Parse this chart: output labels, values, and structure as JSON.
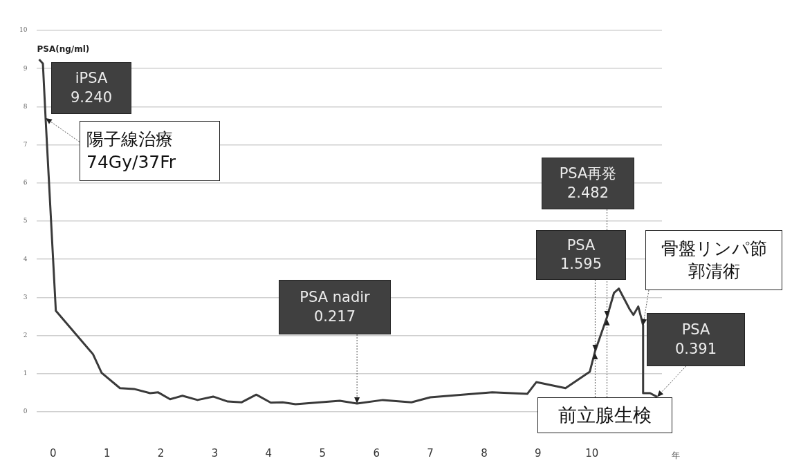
{
  "chart_data": {
    "type": "line",
    "ylabel": "PSA(ng/ml)",
    "xlabel": "年",
    "x": [
      -0.26,
      -0.19,
      -0.14,
      0.05,
      0.74,
      0.9,
      1.24,
      1.5,
      1.8,
      1.95,
      2.17,
      2.4,
      2.68,
      2.97,
      3.24,
      3.5,
      3.77,
      4.04,
      4.26,
      4.5,
      5.32,
      5.64,
      6.12,
      6.65,
      7.0,
      8.15,
      8.8,
      8.97,
      9.51,
      9.96,
      10.06,
      10.28,
      10.41,
      10.5,
      10.7,
      10.77,
      10.86,
      10.95,
      10.95,
      11.08,
      11.21
    ],
    "series": [
      {
        "color": "#3a3a3a",
        "values": [
          9.24,
          9.13,
          7.7,
          2.65,
          1.51,
          1.02,
          0.62,
          0.6,
          0.49,
          0.51,
          0.33,
          0.42,
          0.31,
          0.4,
          0.27,
          0.25,
          0.45,
          0.24,
          0.25,
          0.2,
          0.29,
          0.217,
          0.31,
          0.25,
          0.38,
          0.51,
          0.47,
          0.78,
          0.62,
          1.05,
          1.595,
          2.482,
          3.12,
          3.23,
          2.69,
          2.54,
          2.76,
          2.27,
          0.49,
          0.49,
          0.391
        ]
      }
    ],
    "xlim": [
      -0.3,
      11.3
    ],
    "ylim": [
      0,
      10
    ],
    "xticks": [
      0,
      1,
      2,
      3,
      4,
      5,
      6,
      7,
      8,
      9,
      10
    ],
    "yticks": [
      0,
      1,
      2,
      3,
      4,
      5,
      6,
      7,
      8,
      9,
      10
    ],
    "grid": "y",
    "legend": false,
    "marker": "none",
    "line_style": "solid",
    "annotations": [
      {
        "text": "iPSA\n9.240",
        "x": -0.26,
        "y": 9.24
      },
      {
        "text": "陽子線治療\n74Gy/37Fr",
        "x": -0.14,
        "y": 7.7
      },
      {
        "text": "PSA nadir\n0.217",
        "x": 5.64,
        "y": 0.217
      },
      {
        "text": "PSA再発\n2.482",
        "x": 10.28,
        "y": 2.482
      },
      {
        "text": "PSA\n1.595",
        "x": 10.06,
        "y": 1.595
      },
      {
        "text": "骨盤リンパ節郭清術",
        "x": 10.95,
        "y": 2.27
      },
      {
        "text": "PSA\n0.391",
        "x": 11.21,
        "y": 0.391
      },
      {
        "text": "前立腺生検",
        "x": 10.06,
        "y": 1.595
      }
    ]
  }
}
